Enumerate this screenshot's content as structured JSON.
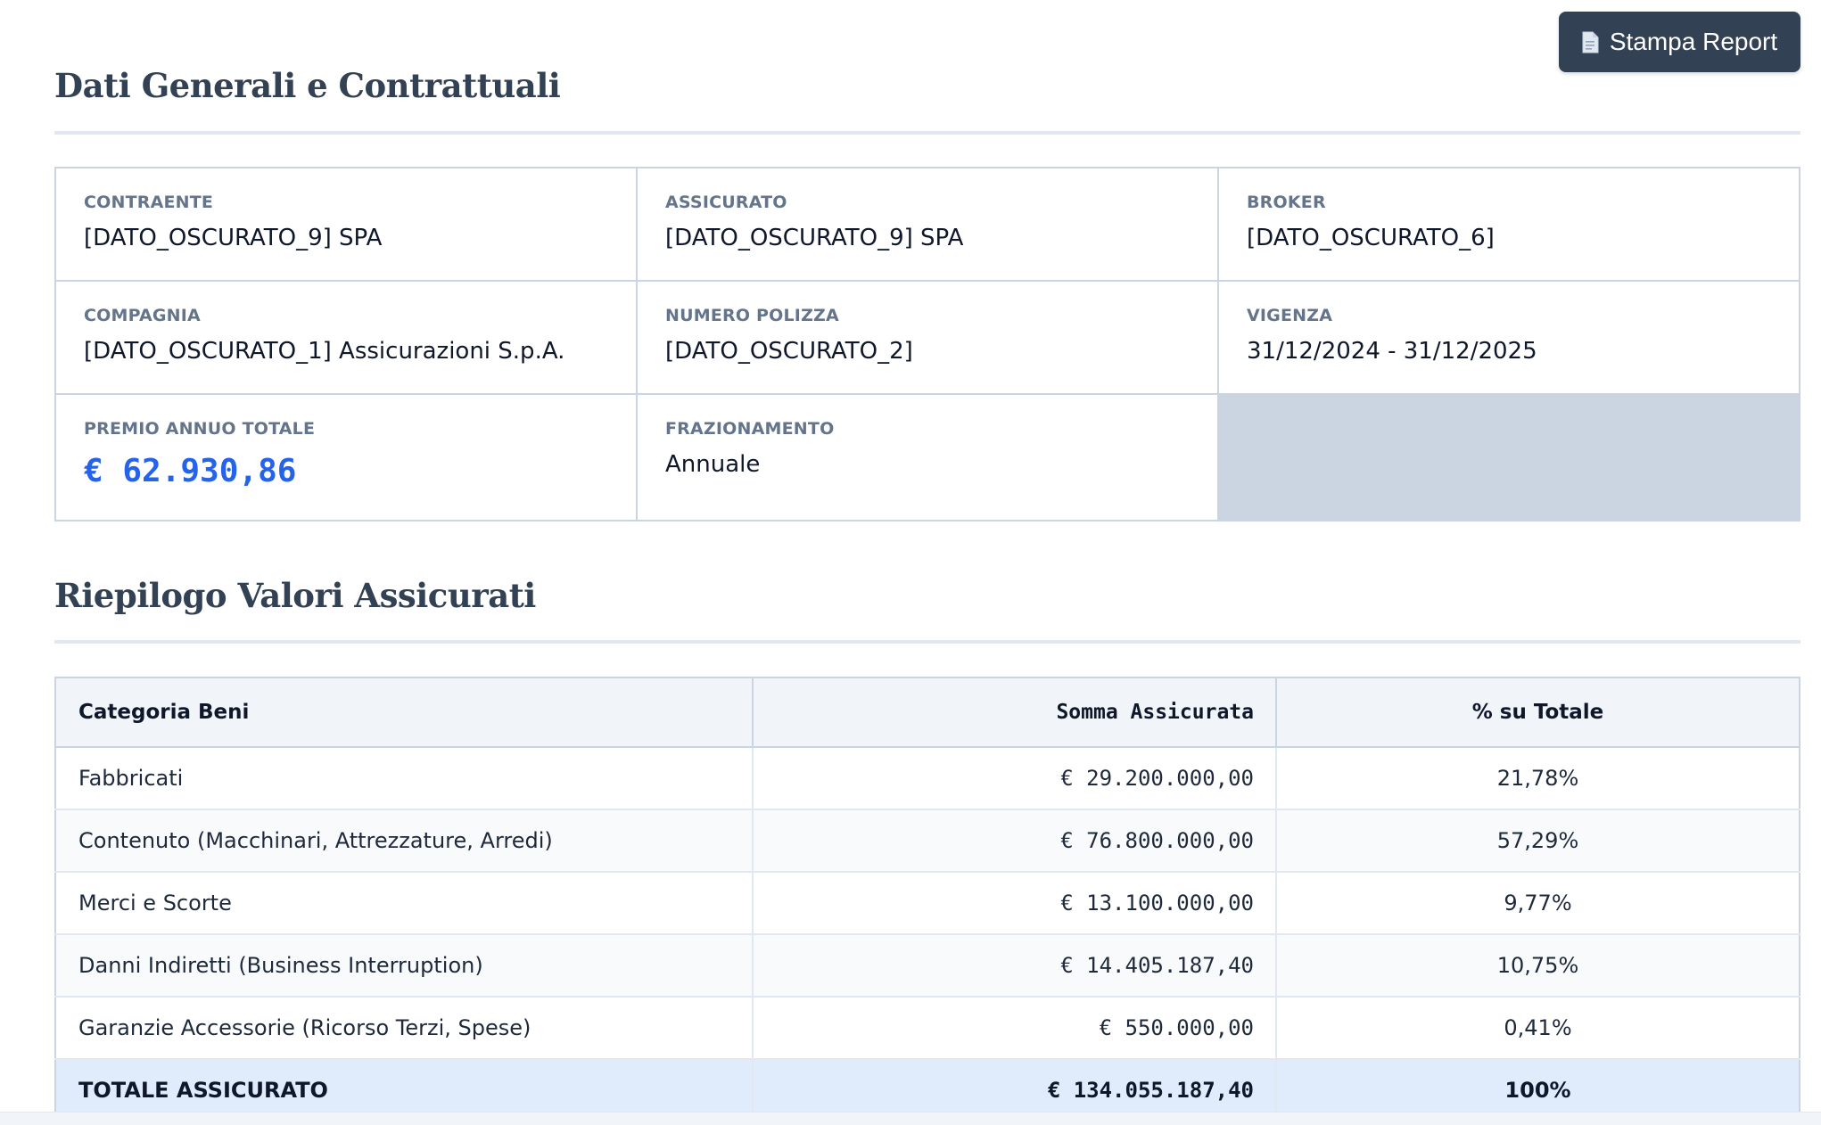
{
  "actions": {
    "print_label": "Stampa Report",
    "print_icon": "document-icon"
  },
  "general": {
    "title": "Dati Generali e Contrattuali",
    "fields": [
      {
        "label": "CONTRAENTE",
        "value": "[DATO_OSCURATO_9] SPA"
      },
      {
        "label": "ASSICURATO",
        "value": "[DATO_OSCURATO_9] SPA"
      },
      {
        "label": "BROKER",
        "value": "[DATO_OSCURATO_6]"
      },
      {
        "label": "COMPAGNIA",
        "value": "[DATO_OSCURATO_1] Assicurazioni S.p.A."
      },
      {
        "label": "NUMERO POLIZZA",
        "value": "[DATO_OSCURATO_2]"
      },
      {
        "label": "VIGENZA",
        "value": "31/12/2024 - 31/12/2025"
      },
      {
        "label": "PREMIO ANNUO TOTALE",
        "value": "€ 62.930,86"
      },
      {
        "label": "FRAZIONAMENTO",
        "value": "Annuale"
      }
    ]
  },
  "summary": {
    "title": "Riepilogo Valori Assicurati",
    "columns": [
      "Categoria Beni",
      "Somma Assicurata",
      "% su Totale"
    ],
    "rows": [
      {
        "category": "Fabbricati",
        "sum": "€ 29.200.000,00",
        "pct": "21,78%"
      },
      {
        "category": "Contenuto (Macchinari, Attrezzature, Arredi)",
        "sum": "€ 76.800.000,00",
        "pct": "57,29%"
      },
      {
        "category": "Merci e Scorte",
        "sum": "€ 13.100.000,00",
        "pct": "9,77%"
      },
      {
        "category": "Danni Indiretti (Business Interruption)",
        "sum": "€ 14.405.187,40",
        "pct": "10,75%"
      },
      {
        "category": "Garanzie Accessorie (Ricorso Terzi, Spese)",
        "sum": "€ 550.000,00",
        "pct": "0,41%"
      }
    ],
    "total": {
      "category": "TOTALE ASSICURATO",
      "sum": "€ 134.055.187,40",
      "pct": "100%"
    }
  },
  "colors": {
    "accent": "#2563eb",
    "button": "#334155",
    "border": "#cbd5e1",
    "total_row": "#e0ecfb"
  }
}
